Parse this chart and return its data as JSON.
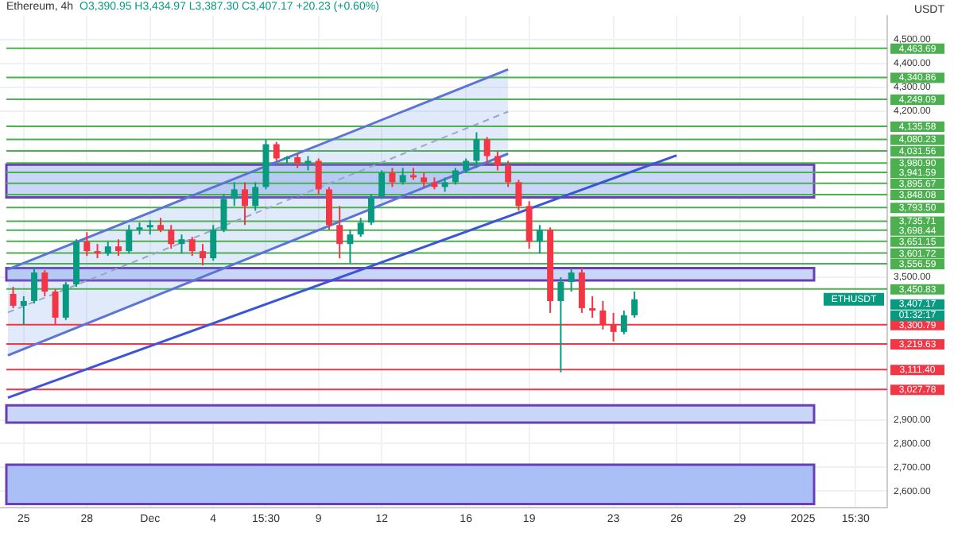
{
  "chart_data": {
    "type": "candlestick",
    "title": "Ethereum, 4h",
    "subtitle": "O3,390.95 H3,434.97 L3,387.30 C3,407.17 +20.23 (+0.60%)",
    "ylabel": "USDT",
    "annotations": [
      "ETHUSDT",
      "3,407.17",
      "01:32:17"
    ],
    "xlim": [
      "2024-11-23T21:00",
      "2025-01-05T00:00"
    ],
    "xticks": [
      {
        "value": "2024-11-25",
        "label": "25"
      },
      {
        "value": "2024-11-28",
        "label": "28"
      },
      {
        "value": "2024-12-01",
        "label": "Dec"
      },
      {
        "value": "2024-12-04",
        "label": "4"
      },
      {
        "value": "2024-12-06T12:00",
        "label": "15:30"
      },
      {
        "value": "2024-12-09",
        "label": "9"
      },
      {
        "value": "2024-12-12",
        "label": "12"
      },
      {
        "value": "2024-12-16",
        "label": "16"
      },
      {
        "value": "2024-12-19",
        "label": "19"
      },
      {
        "value": "2024-12-23",
        "label": "23"
      },
      {
        "value": "2024-12-26",
        "label": "26"
      },
      {
        "value": "2024-12-29",
        "label": "29"
      },
      {
        "value": "2025-01-01",
        "label": "2025"
      },
      {
        "value": "2025-01-03T12:00",
        "label": "15:30"
      }
    ],
    "ylim": [
      2530,
      4600
    ],
    "yticks": [
      {
        "value": 4500,
        "label": "4,500.00"
      },
      {
        "value": 4400,
        "label": "4,400.00"
      },
      {
        "value": 4300,
        "label": "4,300.00"
      },
      {
        "value": 4200,
        "label": "4,200.00"
      },
      {
        "value": 3500,
        "label": "3,500.00"
      },
      {
        "value": 2900,
        "label": "2,900.00"
      },
      {
        "value": 2800,
        "label": "2,800.00"
      },
      {
        "value": 2700,
        "label": "2,700.00"
      },
      {
        "value": 2600,
        "label": "2,600.00"
      }
    ],
    "grid": true,
    "series": [
      {
        "x": [
          "2024-11-24T12:00",
          "2024-11-25T00:00",
          "2024-11-25T12:00",
          "2024-11-26T00:00",
          "2024-11-26T12:00",
          "2024-11-27T00:00",
          "2024-11-27T12:00",
          "2024-11-28T00:00",
          "2024-11-28T12:00",
          "2024-11-29T00:00",
          "2024-11-29T12:00",
          "2024-11-30T00:00",
          "2024-11-30T12:00",
          "2024-12-01T00:00",
          "2024-12-01T12:00",
          "2024-12-02T00:00",
          "2024-12-02T12:00",
          "2024-12-03T00:00",
          "2024-12-03T12:00",
          "2024-12-04T00:00",
          "2024-12-04T12:00",
          "2024-12-05T00:00",
          "2024-12-05T12:00",
          "2024-12-06T00:00",
          "2024-12-06T12:00",
          "2024-12-07T00:00",
          "2024-12-07T12:00",
          "2024-12-08T00:00",
          "2024-12-08T12:00",
          "2024-12-09T00:00",
          "2024-12-09T12:00",
          "2024-12-10T00:00",
          "2024-12-10T12:00",
          "2024-12-11T00:00",
          "2024-12-11T12:00",
          "2024-12-12T00:00",
          "2024-12-12T12:00",
          "2024-12-13T00:00",
          "2024-12-13T12:00",
          "2024-12-14T00:00",
          "2024-12-14T12:00",
          "2024-12-15T00:00",
          "2024-12-15T12:00",
          "2024-12-16T00:00",
          "2024-12-16T12:00",
          "2024-12-17T00:00",
          "2024-12-17T12:00",
          "2024-12-18T00:00",
          "2024-12-18T12:00",
          "2024-12-19T00:00",
          "2024-12-19T12:00",
          "2024-12-20T00:00",
          "2024-12-20T12:00",
          "2024-12-21T00:00",
          "2024-12-21T12:00",
          "2024-12-22T00:00",
          "2024-12-22T12:00",
          "2024-12-23T00:00",
          "2024-12-23T12:00",
          "2024-12-24T00:00"
        ],
        "ohlc": [
          [
            3430,
            3460,
            3370,
            3380
          ],
          [
            3380,
            3420,
            3300,
            3400
          ],
          [
            3400,
            3540,
            3390,
            3520
          ],
          [
            3520,
            3530,
            3420,
            3440
          ],
          [
            3440,
            3450,
            3300,
            3330
          ],
          [
            3330,
            3480,
            3320,
            3470
          ],
          [
            3470,
            3660,
            3460,
            3650
          ],
          [
            3650,
            3690,
            3590,
            3610
          ],
          [
            3610,
            3640,
            3580,
            3600
          ],
          [
            3600,
            3650,
            3590,
            3630
          ],
          [
            3630,
            3660,
            3590,
            3610
          ],
          [
            3610,
            3720,
            3600,
            3700
          ],
          [
            3700,
            3730,
            3680,
            3710
          ],
          [
            3710,
            3740,
            3680,
            3720
          ],
          [
            3720,
            3750,
            3690,
            3700
          ],
          [
            3700,
            3720,
            3620,
            3640
          ],
          [
            3640,
            3680,
            3600,
            3660
          ],
          [
            3660,
            3670,
            3590,
            3610
          ],
          [
            3610,
            3640,
            3550,
            3580
          ],
          [
            3580,
            3720,
            3570,
            3700
          ],
          [
            3700,
            3850,
            3690,
            3830
          ],
          [
            3830,
            3900,
            3800,
            3870
          ],
          [
            3870,
            3900,
            3720,
            3800
          ],
          [
            3800,
            3900,
            3780,
            3880
          ],
          [
            3880,
            4080,
            3870,
            4060
          ],
          [
            4060,
            4070,
            3990,
            4000
          ],
          [
            4000,
            4010,
            3980,
            4005
          ],
          [
            4005,
            4020,
            3960,
            3980
          ],
          [
            3980,
            4010,
            3950,
            3990
          ],
          [
            3990,
            4000,
            3850,
            3870
          ],
          [
            3870,
            3880,
            3700,
            3720
          ],
          [
            3720,
            3800,
            3580,
            3640
          ],
          [
            3640,
            3700,
            3560,
            3680
          ],
          [
            3680,
            3750,
            3670,
            3730
          ],
          [
            3730,
            3850,
            3720,
            3840
          ],
          [
            3840,
            3950,
            3830,
            3940
          ],
          [
            3940,
            3960,
            3880,
            3900
          ],
          [
            3900,
            3960,
            3890,
            3930
          ],
          [
            3930,
            3960,
            3910,
            3920
          ],
          [
            3920,
            3940,
            3880,
            3900
          ],
          [
            3900,
            3920,
            3870,
            3880
          ],
          [
            3880,
            3920,
            3860,
            3900
          ],
          [
            3900,
            3960,
            3890,
            3950
          ],
          [
            3950,
            4000,
            3940,
            3990
          ],
          [
            3990,
            4110,
            3960,
            4080
          ],
          [
            4080,
            4090,
            3980,
            4010
          ],
          [
            4010,
            4030,
            3950,
            3970
          ],
          [
            3970,
            3990,
            3880,
            3900
          ],
          [
            3900,
            3910,
            3780,
            3800
          ],
          [
            3800,
            3820,
            3620,
            3650
          ],
          [
            3650,
            3720,
            3600,
            3700
          ],
          [
            3700,
            3710,
            3350,
            3400
          ],
          [
            3400,
            3500,
            3100,
            3480
          ],
          [
            3480,
            3540,
            3440,
            3520
          ],
          [
            3520,
            3540,
            3350,
            3370
          ],
          [
            3370,
            3420,
            3330,
            3360
          ],
          [
            3360,
            3400,
            3280,
            3300
          ],
          [
            3300,
            3350,
            3230,
            3270
          ],
          [
            3270,
            3360,
            3260,
            3340
          ],
          [
            3340,
            3440,
            3330,
            3407.17
          ]
        ],
        "colors": [
          "#f23645",
          "#089981",
          "#089981",
          "#f23645",
          "#f23645",
          "#089981",
          "#089981",
          "#f23645",
          "#f23645",
          "#089981",
          "#f23645",
          "#089981",
          "#089981",
          "#089981",
          "#f23645",
          "#f23645",
          "#089981",
          "#f23645",
          "#f23645",
          "#089981",
          "#089981",
          "#089981",
          "#f23645",
          "#089981",
          "#089981",
          "#f23645",
          "#089981",
          "#f23645",
          "#089981",
          "#f23645",
          "#f23645",
          "#f23645",
          "#089981",
          "#089981",
          "#089981",
          "#089981",
          "#f23645",
          "#089981",
          "#f23645",
          "#f23645",
          "#f23645",
          "#089981",
          "#089981",
          "#089981",
          "#089981",
          "#f23645",
          "#f23645",
          "#f23645",
          "#f23645",
          "#f23645",
          "#089981",
          "#f23645",
          "#089981",
          "#089981",
          "#f23645",
          "#f23645",
          "#f23645",
          "#f23645",
          "#089981",
          "#089981"
        ]
      },
      {
        "type": "line",
        "x": [
          "2024-11-24T06:00",
          "2024-12-18T00:00"
        ],
        "values": [
          3352,
          4197
        ],
        "lower": [
          3171,
          4020
        ],
        "upper": [
          3533,
          4375
        ],
        "color": "#9aa6c8",
        "line_style": "dashed"
      },
      {
        "type": "line",
        "x": [
          "2024-11-24T06:00",
          "2024-12-18T00:00"
        ],
        "values": [
          3533,
          4375
        ],
        "color": "#5b74d6"
      },
      {
        "type": "line",
        "x": [
          "2024-11-24T06:00",
          "2024-12-18T00:00"
        ],
        "values": [
          3171,
          4020
        ],
        "color": "#5b74d6"
      },
      {
        "type": "line",
        "x": [
          "2024-11-24T06:00",
          "2024-12-26T00:00"
        ],
        "values": [
          2993,
          4013
        ],
        "color": "#3b55d9"
      }
    ],
    "ref_lines": [
      {
        "axis": "y",
        "value": 4463.69,
        "label": "4,463.69",
        "color": "#4caf50"
      },
      {
        "axis": "y",
        "value": 4340.86,
        "label": "4,340.86",
        "color": "#4caf50"
      },
      {
        "axis": "y",
        "value": 4249.09,
        "label": "4,249.09",
        "color": "#4caf50"
      },
      {
        "axis": "y",
        "value": 4135.58,
        "label": "4,135.58",
        "color": "#4caf50"
      },
      {
        "axis": "y",
        "value": 4080.23,
        "label": "4,080.23",
        "color": "#4caf50"
      },
      {
        "axis": "y",
        "value": 4031.56,
        "label": "4,031.56",
        "color": "#4caf50"
      },
      {
        "axis": "y",
        "value": 3980.9,
        "label": "3,980.90",
        "color": "#4caf50"
      },
      {
        "axis": "y",
        "value": 3941.59,
        "label": "3,941.59",
        "color": "#4caf50"
      },
      {
        "axis": "y",
        "value": 3895.67,
        "label": "3,895.67",
        "color": "#4caf50"
      },
      {
        "axis": "y",
        "value": 3848.08,
        "label": "3,848.08",
        "color": "#4caf50"
      },
      {
        "axis": "y",
        "value": 3793.5,
        "label": "3,793.50",
        "color": "#4caf50"
      },
      {
        "axis": "y",
        "value": 3735.71,
        "label": "3,735.71",
        "color": "#4caf50"
      },
      {
        "axis": "y",
        "value": 3698.44,
        "label": "3,698.44",
        "color": "#4caf50"
      },
      {
        "axis": "y",
        "value": 3651.15,
        "label": "3,651.15",
        "color": "#4caf50"
      },
      {
        "axis": "y",
        "value": 3601.72,
        "label": "3,601.72",
        "color": "#4caf50"
      },
      {
        "axis": "y",
        "value": 3556.59,
        "label": "3,556.59",
        "color": "#4caf50"
      },
      {
        "axis": "y",
        "value": 3450.83,
        "label": "3,450.83",
        "color": "#4caf50"
      },
      {
        "axis": "y",
        "value": 3300.79,
        "label": "3,300.79",
        "color": "#f23645"
      },
      {
        "axis": "y",
        "value": 3219.63,
        "label": "3,219.63",
        "color": "#f23645"
      },
      {
        "axis": "y",
        "value": 3111.4,
        "label": "3,111.40",
        "color": "#f23645"
      },
      {
        "axis": "y",
        "value": 3027.78,
        "label": "3,027.78",
        "color": "#f23645"
      }
    ],
    "bands": [
      {
        "axis": "y",
        "from": 3836,
        "to": 3974,
        "color": "#c9d6f7"
      },
      {
        "axis": "y",
        "from": 3487,
        "to": 3539,
        "color": "#c9d6f7"
      },
      {
        "axis": "y",
        "from": 2888,
        "to": 2961,
        "color": "#c9d6f7"
      },
      {
        "axis": "y",
        "from": 2546,
        "to": 2711,
        "color": "#a9bff5"
      }
    ]
  }
}
